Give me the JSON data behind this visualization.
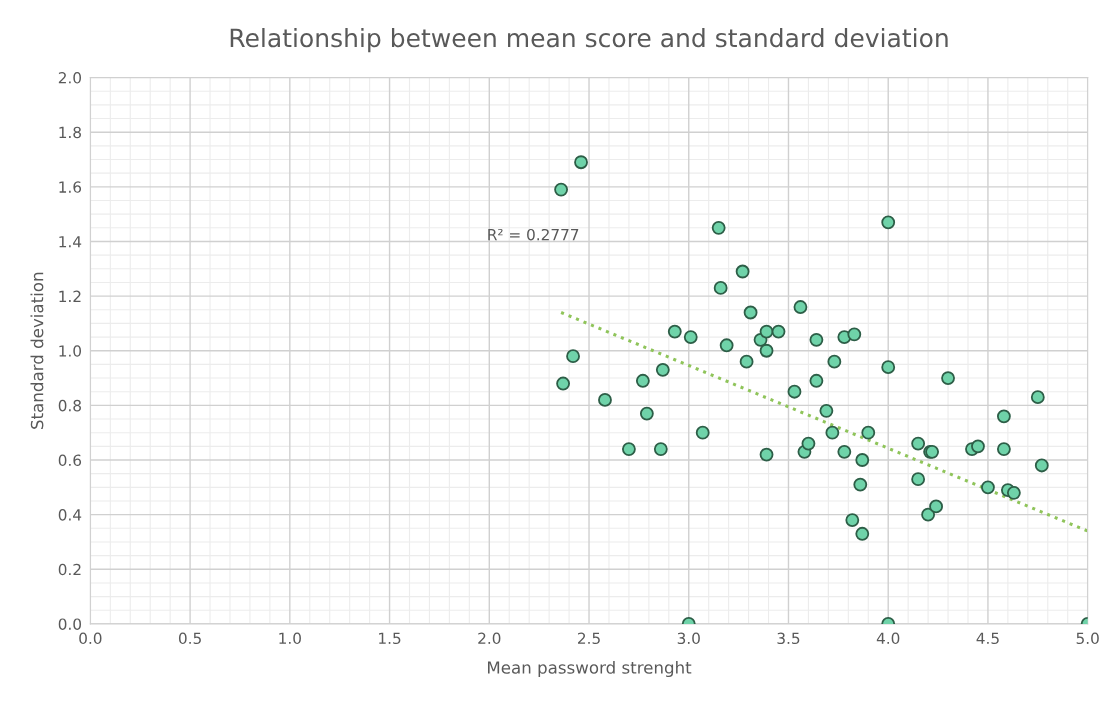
{
  "chart_data": {
    "type": "scatter",
    "title": "Relationship between mean score and standard deviation",
    "xlabel": "Mean password strenght",
    "ylabel": "Standard deviation",
    "xlim": [
      0,
      5
    ],
    "ylim": [
      0,
      2
    ],
    "xticks": [
      {
        "value": 0,
        "label": "0.0"
      },
      {
        "value": 0.5,
        "label": "0.5"
      },
      {
        "value": 1,
        "label": "1.0"
      },
      {
        "value": 1.5,
        "label": "1.5"
      },
      {
        "value": 2,
        "label": "2.0"
      },
      {
        "value": 2.5,
        "label": "2.5"
      },
      {
        "value": 3,
        "label": "3.0"
      },
      {
        "value": 3.5,
        "label": "3.5"
      },
      {
        "value": 4,
        "label": "4.0"
      },
      {
        "value": 4.5,
        "label": "4.5"
      },
      {
        "value": 5,
        "label": "5.0"
      }
    ],
    "yticks": [
      {
        "value": 0,
        "label": "0.0"
      },
      {
        "value": 0.2,
        "label": "0.2"
      },
      {
        "value": 0.4,
        "label": "0.4"
      },
      {
        "value": 0.6,
        "label": "0.6"
      },
      {
        "value": 0.8,
        "label": "0.8"
      },
      {
        "value": 1,
        "label": "1.0"
      },
      {
        "value": 1.2,
        "label": "1.2"
      },
      {
        "value": 1.4,
        "label": "1.4"
      },
      {
        "value": 1.6,
        "label": "1.6"
      },
      {
        "value": 1.8,
        "label": "1.8"
      },
      {
        "value": 2,
        "label": "2.0"
      }
    ],
    "grid": true,
    "annotations": [
      "R² = 0.2777"
    ],
    "series": [
      {
        "color": "#6fd3a9",
        "marker": "circle",
        "x": [
          2.36,
          2.46,
          2.37,
          2.42,
          2.58,
          2.7,
          2.77,
          2.79,
          2.86,
          2.87,
          2.93,
          3.01,
          3.0,
          3.07,
          3.15,
          3.16,
          3.19,
          3.27,
          3.29,
          3.31,
          3.36,
          3.39,
          3.39,
          3.39,
          3.45,
          3.53,
          3.56,
          3.58,
          3.6,
          3.64,
          3.64,
          3.69,
          3.72,
          3.73,
          3.78,
          3.78,
          3.83,
          3.82,
          3.86,
          3.87,
          3.87,
          3.9,
          4.0,
          4.0,
          4.0,
          4.15,
          4.15,
          4.2,
          4.21,
          4.22,
          4.24,
          4.3,
          4.42,
          4.45,
          4.5,
          4.58,
          4.58,
          4.6,
          4.63,
          4.75,
          4.77,
          5.0
        ],
        "values": [
          1.59,
          1.69,
          0.88,
          0.98,
          0.82,
          0.64,
          0.89,
          0.77,
          0.64,
          0.93,
          1.07,
          1.05,
          0.0,
          0.7,
          1.45,
          1.23,
          1.02,
          1.29,
          0.96,
          1.14,
          1.04,
          1.07,
          1.0,
          0.62,
          1.07,
          0.85,
          1.16,
          0.63,
          0.66,
          1.04,
          0.89,
          0.78,
          0.7,
          0.96,
          1.05,
          0.63,
          1.06,
          0.38,
          0.51,
          0.6,
          0.33,
          0.7,
          1.47,
          0.94,
          0.0,
          0.66,
          0.53,
          0.4,
          0.63,
          0.63,
          0.43,
          0.9,
          0.64,
          0.65,
          0.5,
          0.76,
          0.64,
          0.49,
          0.48,
          0.83,
          0.58,
          0.0
        ]
      },
      {
        "type": "line",
        "color": "#8fc45a",
        "line_style": "dotted",
        "marker": "none",
        "x": [
          2.36,
          5.0
        ],
        "values": [
          1.14,
          0.34
        ]
      }
    ]
  }
}
